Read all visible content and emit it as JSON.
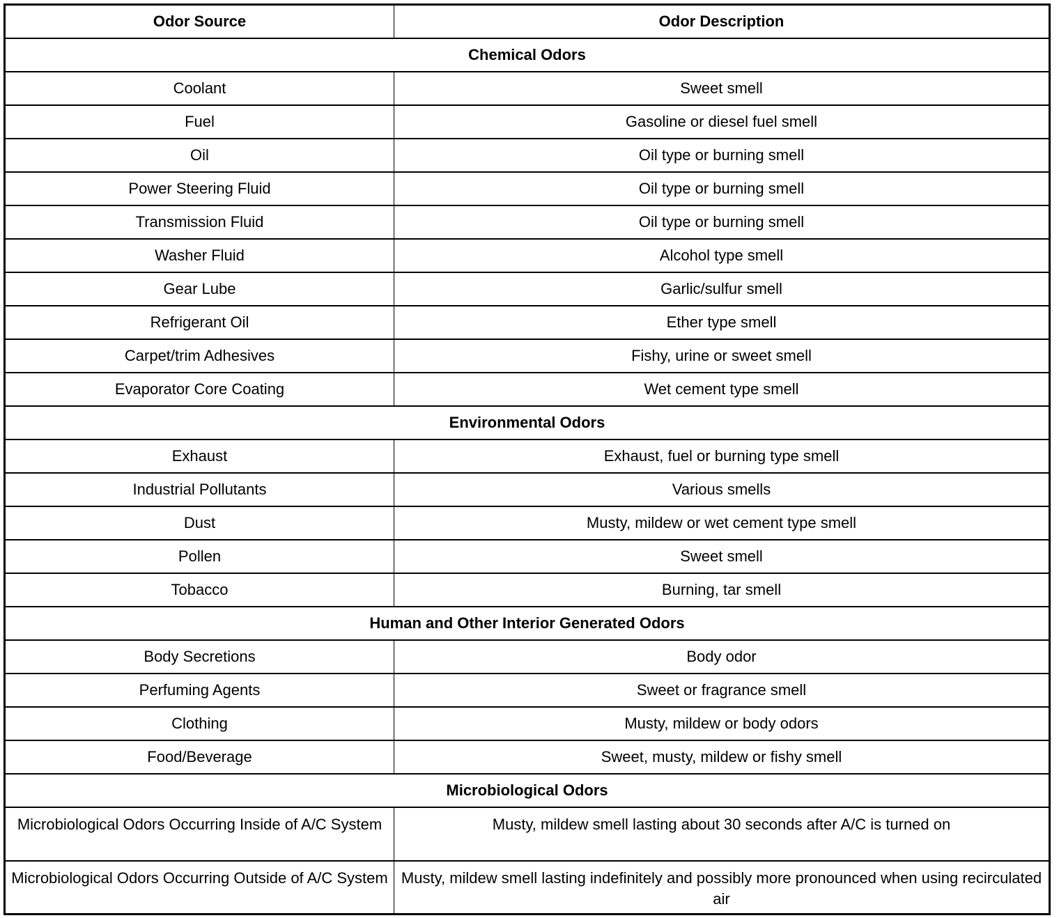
{
  "headers": {
    "source": "Odor Source",
    "description": "Odor Description"
  },
  "sections": [
    {
      "title": "Chemical Odors",
      "rows": [
        [
          "Coolant",
          "Sweet smell"
        ],
        [
          "Fuel",
          "Gasoline or diesel fuel smell"
        ],
        [
          "Oil",
          "Oil type or burning smell"
        ],
        [
          "Power Steering Fluid",
          "Oil type or burning smell"
        ],
        [
          "Transmission Fluid",
          "Oil type or burning smell"
        ],
        [
          "Washer Fluid",
          "Alcohol type smell"
        ],
        [
          "Gear Lube",
          "Garlic/sulfur smell"
        ],
        [
          "Refrigerant Oil",
          "Ether type smell"
        ],
        [
          "Carpet/trim Adhesives",
          "Fishy, urine or sweet smell"
        ],
        [
          "Evaporator Core Coating",
          "Wet cement type smell"
        ]
      ]
    },
    {
      "title": "Environmental Odors",
      "rows": [
        [
          "Exhaust",
          "Exhaust, fuel or burning type smell"
        ],
        [
          "Industrial Pollutants",
          "Various smells"
        ],
        [
          "Dust",
          "Musty, mildew or wet cement type smell"
        ],
        [
          "Pollen",
          "Sweet smell"
        ],
        [
          "Tobacco",
          "Burning, tar smell"
        ]
      ]
    },
    {
      "title": "Human and Other Interior Generated Odors",
      "rows": [
        [
          "Body Secretions",
          "Body odor"
        ],
        [
          "Perfuming Agents",
          "Sweet or fragrance smell"
        ],
        [
          "Clothing",
          "Musty, mildew or body odors"
        ],
        [
          "Food/Beverage",
          "Sweet, musty, mildew or fishy smell"
        ]
      ]
    },
    {
      "title": "Microbiological Odors",
      "rows": [
        [
          "Microbiological Odors Occurring Inside of A/C System",
          "Musty, mildew smell lasting about 30 seconds after A/C is turned on"
        ],
        [
          "Microbiological Odors Occurring Outside of A/C System",
          "Musty, mildew smell lasting indefinitely and possibly more pronounced when using recirculated air"
        ]
      ]
    }
  ]
}
